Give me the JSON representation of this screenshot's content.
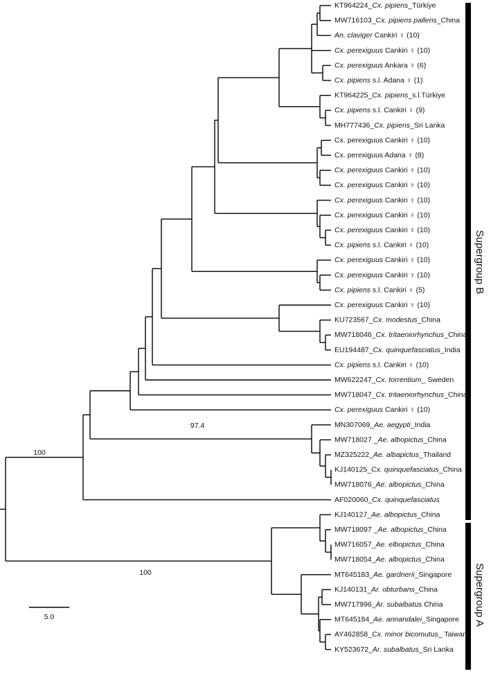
{
  "tree": {
    "leaves": [
      {
        "pre": "KT964224_",
        "italic": "Cx. pipiens",
        "post": "_Türkiye"
      },
      {
        "pre": "MW716103_",
        "italic": "Cx. pipiens pallens",
        "post": "_China"
      },
      {
        "italic": "An. claviger",
        "post": " Cankiri ♀ (10)"
      },
      {
        "italic": "Cx. perexiguus",
        "post": " Cankiri ♀ (10)"
      },
      {
        "italic": "Cx. perexiguus",
        "post": " Ankara ♀ (6)"
      },
      {
        "italic": "Cx. pipiens",
        "post": " s.l. Adana ♀ (1)"
      },
      {
        "pre": "KT964225_",
        "italic": "Cx. pipiens",
        "post": "_s.l.Türkiye"
      },
      {
        "italic": "Cx. pipiens",
        "post": " s.l. Cankiri ♀ (9)"
      },
      {
        "pre": "MH777436_",
        "italic": "Cx. pipiens",
        "post": "_Sri Lanka"
      },
      {
        "pre": "Cx. perexiguus Cankiri ♀ (10)"
      },
      {
        "pre": "Cx. perexiguus Adana ♀ (8)"
      },
      {
        "italic": "Cx. perexiguus",
        "post": " Cankiri ♀ (10)"
      },
      {
        "italic": "Cx. perexiguus",
        "post": " Cankiri ♀ (10)"
      },
      {
        "italic": "Cx. perexiguus",
        "post": " Cankiri ♀ (10)"
      },
      {
        "italic": "Cx. perexiguus",
        "post": " Cankiri ♀ (10)"
      },
      {
        "italic": "Cx. perexiguus",
        "post": " Cankiri ♀ (10)"
      },
      {
        "italic": "Cx. pipiens",
        "post": " s.l. Cankiri ♀ (10)"
      },
      {
        "italic": "Cx. perexiguus",
        "post": " Cankiri ♀ (10)"
      },
      {
        "italic": "Cx. perexiguus",
        "post": " Cankiri ♀ (10)"
      },
      {
        "italic": "Cx. pipiens",
        "post": " s.l. Cankiri ♀ (5)"
      },
      {
        "italic": "Cx. perexiguus",
        "post": " Cankiri ♀ (10)"
      },
      {
        "pre": "KU723567_",
        "italic": "Cx. modestus",
        "post": "_China"
      },
      {
        "pre": "MW718046_",
        "italic": "Cx. tritaeniorhynchus",
        "post": "_China"
      },
      {
        "pre": "EU194487_",
        "italic": "Cx. quinquefasciatus",
        "post": "_India"
      },
      {
        "italic": "Cx. pipiens",
        "post": " s.l. Cankiri ♀ (10)"
      },
      {
        "pre": "MW622247_",
        "italic": "Cx. torrentium",
        "post": "_ Sweden"
      },
      {
        "pre": "MW718047_",
        "italic": "Cx. tritaeniorhynchus",
        "post": "_China"
      },
      {
        "italic": "Cx. perexiguus",
        "post": " Cankiri ♀ (10)"
      },
      {
        "pre": "MN307069_",
        "italic": "Ae. aegypti",
        "post": "_India"
      },
      {
        "pre": "MW718027 _",
        "italic": "Ae. albopictus",
        "post": "_China"
      },
      {
        "pre": "MZ325222_",
        "italic": "Ae. albapictus",
        "post": "_Thailand"
      },
      {
        "pre": "KJ140125_",
        "italic": "Cx. quinquefasciatus",
        "post": "_China"
      },
      {
        "pre": "MW718076_",
        "italic": "Ae. albopictus",
        "post": "_China"
      },
      {
        "pre": "AF020060_",
        "italic": "Cx. quinquefasciatus"
      },
      {
        "pre": "KJ140127_",
        "italic": "Ae. albopictus",
        "post": "_China"
      },
      {
        "pre": "MW718097 _",
        "italic": "Ae. albopictus",
        "post": "_China"
      },
      {
        "pre": "MW716057_",
        "italic": "Ae. elbopictus",
        "post": "_China"
      },
      {
        "pre": "MW718054_",
        "italic": "Ae. albopictus",
        "post": "_China"
      },
      {
        "pre": "MT645183_",
        "italic": "Ae. gardnerii",
        "post": "_Singapore"
      },
      {
        "pre": "KJ140131_",
        "italic": "Ar. obturbans",
        "post": "_China"
      },
      {
        "pre": "MW717996_",
        "italic": "Ar. subalbatus",
        "post": " China"
      },
      {
        "pre": "MT645184_",
        "italic": "Ae. annandalei",
        "post": "_Singapore"
      },
      {
        "pre": "AY462858_",
        "italic": "Cx. minor bicomutus",
        "post": "_ Taiwan"
      },
      {
        "pre": "KY523672_",
        "italic": "Ar. subalbatus",
        "post": "_Sri Lanka"
      }
    ],
    "bootstrap": [
      100,
      97.4,
      100
    ],
    "scale_label": "5.0",
    "supergroups": [
      "Supergroup B",
      "Supergroup A"
    ]
  }
}
